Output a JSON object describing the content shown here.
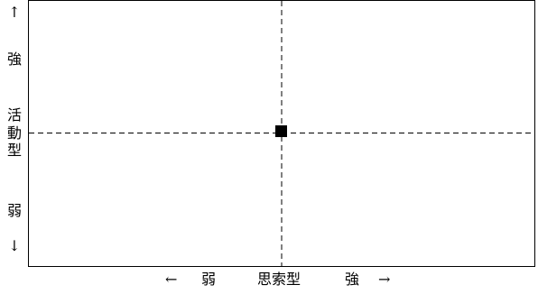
{
  "y_axis": {
    "up_arrow": "↑",
    "strong_label": "強",
    "title_chars": [
      "活",
      "動",
      "型"
    ],
    "weak_label": "弱",
    "down_arrow": "↓"
  },
  "x_axis": {
    "left_arrow": "←",
    "weak_label": "弱",
    "title": "思索型",
    "strong_label": "強",
    "right_arrow": "→"
  },
  "marker": {
    "shape": "square",
    "color": "#000000"
  },
  "colors": {
    "frame": "#000000",
    "axis_lines": "#000000",
    "background": "#ffffff"
  }
}
